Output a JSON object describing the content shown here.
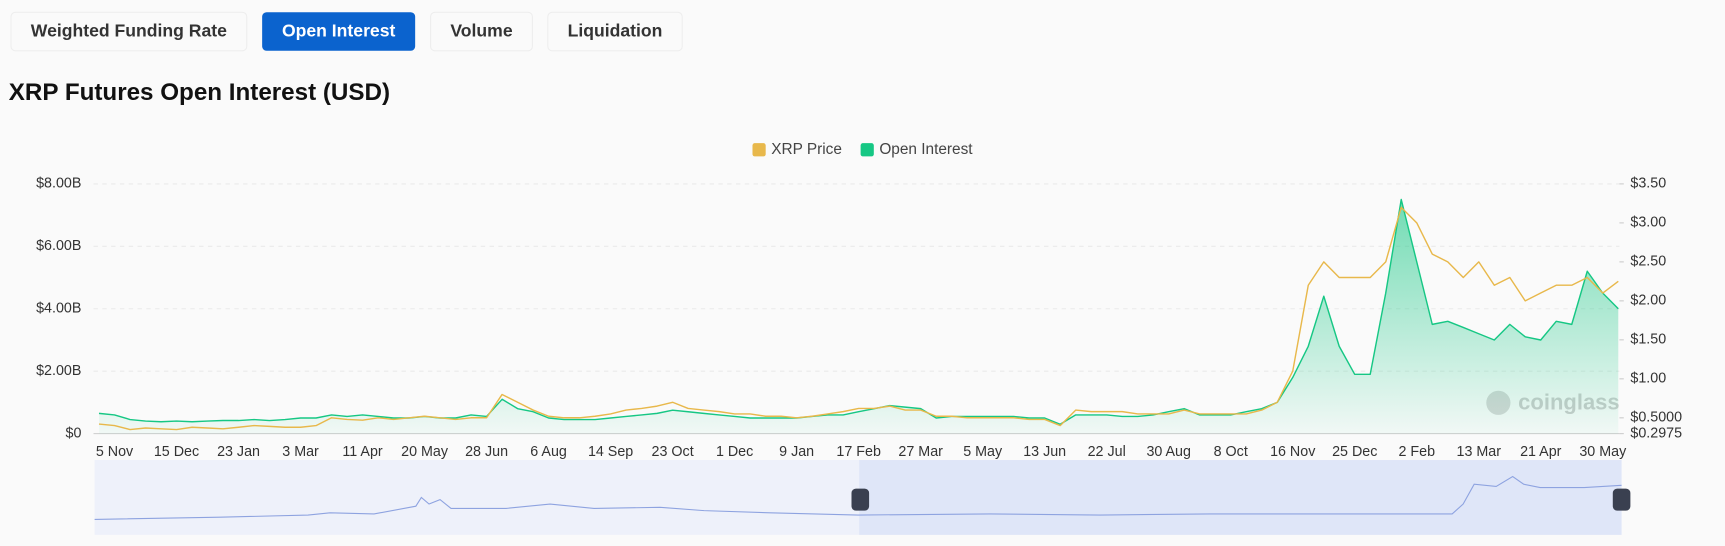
{
  "tabs": [
    {
      "label": "Weighted Funding Rate",
      "active": false
    },
    {
      "label": "Open Interest",
      "active": true
    },
    {
      "label": "Volume",
      "active": false
    },
    {
      "label": "Liquidation",
      "active": false
    }
  ],
  "watermark": "coinglass",
  "chart_data": {
    "type": "line",
    "title": "XRP Futures Open Interest (USD)",
    "legend": "top",
    "grid": true,
    "categories": [
      null,
      "5 Nov",
      null,
      null,
      null,
      "15 Dec",
      null,
      null,
      null,
      "23 Jan",
      null,
      null,
      null,
      "3 Mar",
      null,
      null,
      null,
      "11 Apr",
      null,
      null,
      null,
      "20 May",
      null,
      null,
      null,
      "28 Jun",
      null,
      null,
      null,
      "6 Aug",
      null,
      null,
      null,
      "14 Sep",
      null,
      null,
      null,
      "23 Oct",
      null,
      null,
      null,
      "1 Dec",
      null,
      null,
      null,
      "9 Jan",
      null,
      null,
      null,
      "17 Feb",
      null,
      null,
      null,
      "27 Mar",
      null,
      null,
      null,
      "5 May",
      null,
      null,
      null,
      "13 Jun",
      null,
      null,
      null,
      "22 Jul",
      null,
      null,
      null,
      "30 Aug",
      null,
      null,
      null,
      "8 Oct",
      null,
      null,
      null,
      "16 Nov",
      null,
      null,
      null,
      "25 Dec",
      null,
      null,
      null,
      "2 Feb",
      null,
      null,
      null,
      "13 Mar",
      null,
      null,
      null,
      "21 Apr",
      null,
      null,
      null,
      "30 May",
      null
    ],
    "ylim": [
      0,
      8000000000
    ],
    "yticks": [
      {
        "value": 0,
        "label": "$0"
      },
      {
        "value": 2000000000,
        "label": "$2.00B"
      },
      {
        "value": 4000000000,
        "label": "$4.00B"
      },
      {
        "value": 6000000000,
        "label": "$6.00B"
      },
      {
        "value": 8000000000,
        "label": "$8.00B"
      }
    ],
    "y2lim": [
      0.2975,
      3.5
    ],
    "y2ticks": [
      {
        "value": 0.2975,
        "label": "$0.2975"
      },
      {
        "value": 0.5,
        "label": "$0.5000"
      },
      {
        "value": 1,
        "label": "$1.00"
      },
      {
        "value": 1.5,
        "label": "$1.50"
      },
      {
        "value": 2,
        "label": "$2.00"
      },
      {
        "value": 2.5,
        "label": "$2.50"
      },
      {
        "value": 3,
        "label": "$3.00"
      },
      {
        "value": 3.5,
        "label": "$3.50"
      }
    ],
    "series": [
      {
        "name": "XRP Price",
        "color": "#e8b84b",
        "axis": "y2",
        "values": [
          0.42,
          0.4,
          0.35,
          0.37,
          0.36,
          0.35,
          0.38,
          0.37,
          0.36,
          0.38,
          0.4,
          0.39,
          0.38,
          0.38,
          0.4,
          0.5,
          0.48,
          0.47,
          0.5,
          0.48,
          0.5,
          0.52,
          0.5,
          0.48,
          0.5,
          0.5,
          0.8,
          0.7,
          0.6,
          0.52,
          0.5,
          0.5,
          0.52,
          0.55,
          0.6,
          0.62,
          0.65,
          0.7,
          0.62,
          0.6,
          0.58,
          0.55,
          0.55,
          0.52,
          0.52,
          0.5,
          0.52,
          0.55,
          0.58,
          0.62,
          0.62,
          0.65,
          0.6,
          0.6,
          0.52,
          0.52,
          0.5,
          0.5,
          0.5,
          0.5,
          0.48,
          0.48,
          0.4,
          0.6,
          0.58,
          0.58,
          0.58,
          0.55,
          0.55,
          0.55,
          0.6,
          0.55,
          0.55,
          0.55,
          0.55,
          0.6,
          0.7,
          1.1,
          2.2,
          2.5,
          2.3,
          2.3,
          2.3,
          2.5,
          3.2,
          3.0,
          2.6,
          2.5,
          2.3,
          2.5,
          2.2,
          2.3,
          2.0,
          2.1,
          2.2,
          2.2,
          2.3,
          2.1,
          2.25
        ]
      },
      {
        "name": "Open Interest",
        "color": "#16c784",
        "area": true,
        "values": [
          650000000.0,
          600000000.0,
          450000000.0,
          400000000.0,
          380000000.0,
          400000000.0,
          380000000.0,
          400000000.0,
          420000000.0,
          420000000.0,
          450000000.0,
          420000000.0,
          450000000.0,
          500000000.0,
          500000000.0,
          600000000.0,
          550000000.0,
          600000000.0,
          550000000.0,
          500000000.0,
          500000000.0,
          550000000.0,
          500000000.0,
          500000000.0,
          600000000.0,
          550000000.0,
          1100000000.0,
          800000000.0,
          700000000.0,
          500000000.0,
          450000000.0,
          450000000.0,
          450000000.0,
          500000000.0,
          550000000.0,
          600000000.0,
          650000000.0,
          750000000.0,
          700000000.0,
          650000000.0,
          600000000.0,
          550000000.0,
          500000000.0,
          500000000.0,
          500000000.0,
          500000000.0,
          550000000.0,
          600000000.0,
          600000000.0,
          700000000.0,
          800000000.0,
          900000000.0,
          850000000.0,
          800000000.0,
          500000000.0,
          550000000.0,
          550000000.0,
          550000000.0,
          550000000.0,
          550000000.0,
          500000000.0,
          500000000.0,
          300000000.0,
          600000000.0,
          600000000.0,
          600000000.0,
          550000000.0,
          550000000.0,
          600000000.0,
          700000000.0,
          800000000.0,
          600000000.0,
          600000000.0,
          600000000.0,
          700000000.0,
          800000000.0,
          1000000000.0,
          1800000000.0,
          2800000000.0,
          4400000000.0,
          2800000000.0,
          1900000000.0,
          1900000000.0,
          4500000000.0,
          7500000000.0,
          5500000000.0,
          3500000000.0,
          3600000000.0,
          3400000000.0,
          3200000000.0,
          3000000000.0,
          3500000000.0,
          3100000000.0,
          3000000000.0,
          3600000000.0,
          3500000000.0,
          5200000000.0,
          4500000000.0,
          4000000000.0
        ]
      }
    ]
  }
}
